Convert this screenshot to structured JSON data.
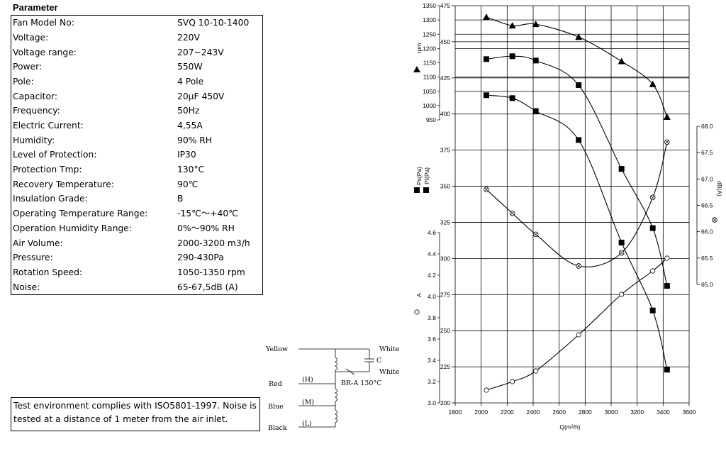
{
  "parameter": {
    "title": "Parameter",
    "rows": [
      {
        "label": "Fan Model No:",
        "value": "SVQ 10-10-1400"
      },
      {
        "label": "Voltage:",
        "value": "220V"
      },
      {
        "label": "Voltage range:",
        "value": "207~243V"
      },
      {
        "label": "Power:",
        "value": "550W"
      },
      {
        "label": "Pole:",
        "value": "4 Pole"
      },
      {
        "label": "Capacitor:",
        "value": "20μF 450V"
      },
      {
        "label": "Frequency:",
        "value": "50Hz"
      },
      {
        "label": "Electric Current:",
        "value": "4,55A"
      },
      {
        "label": "Humidity:",
        "value": "90% RH"
      },
      {
        "label": "Level of Protection:",
        "value": "IP30"
      },
      {
        "label": "Protection Tmp:",
        "value": "130°C"
      },
      {
        "label": "Recovery Temperature:",
        "value": "90℃"
      },
      {
        "label": "Insulation Grade:",
        "value": "B"
      },
      {
        "label": "Operating Temperature Range:",
        "value": "-15℃～+40℃"
      },
      {
        "label": "Operation Humidity Range:",
        "value": "0%～90% RH"
      },
      {
        "label": "Air Volume:",
        "value": "2000-3200 m3/h"
      },
      {
        "label": "Pressure:",
        "value": "290-430Pa"
      },
      {
        "label": "Rotation Speed:",
        "value": "1050-1350 rpm"
      },
      {
        "label": "Noise:",
        "value": "65-67,5dB (A)"
      }
    ]
  },
  "note": "Test environment complies with ISO5801-1997. Noise is tested at a distance of 1 meter from the air inlet.",
  "wiring": {
    "yellow": "Yellow",
    "white_top": "White",
    "white_bottom": "White",
    "capacitor": "C",
    "red": "Red",
    "h": "(H)",
    "breaker": "BR-A 130°C",
    "blue": "Blue",
    "m": "(M)",
    "black": "Black",
    "l": "(L)"
  },
  "chart_data": {
    "type": "line",
    "xlabel": "Q(m³/h)",
    "xlim": [
      1800,
      3600
    ],
    "x_ticks": [
      "1800",
      "2000",
      "2200",
      "2400",
      "2600",
      "2800",
      "3000",
      "3200",
      "3400",
      "3600"
    ],
    "axes": {
      "pressure": {
        "label_ps": "Ps(Pa)",
        "label_pt": "Pt(Pa)",
        "range": [
          200,
          475
        ],
        "ticks": [
          "475",
          "450",
          "425",
          "400",
          "375",
          "350",
          "325",
          "300",
          "275",
          "250",
          "225",
          "200"
        ]
      },
      "rpm": {
        "label": "rpm",
        "range": [
          950,
          1350
        ],
        "ticks": [
          "1350",
          "1300",
          "1250",
          "1200",
          "1150",
          "1100",
          "1050",
          "1000",
          "950"
        ]
      },
      "current": {
        "label": "A",
        "range": [
          3.0,
          4.6
        ],
        "ticks": [
          "4.6",
          "4.4",
          "4.2",
          "4.0",
          "3.8",
          "3.6",
          "3.4",
          "3.2",
          "3.0"
        ]
      },
      "noise": {
        "label": "dB(A)",
        "range": [
          65.0,
          68.0
        ],
        "ticks": [
          "68.0",
          "67.5",
          "67.0",
          "66.5",
          "66.0",
          "65.5",
          "65.0"
        ]
      }
    },
    "series": [
      {
        "key": "rpm",
        "axis": "rpm",
        "marker": "triangle",
        "x": [
          2040,
          2240,
          2420,
          2750,
          3080,
          3320,
          3430
        ],
        "y": [
          1310,
          1280,
          1285,
          1240,
          1155,
          1075,
          960
        ]
      },
      {
        "key": "pt",
        "axis": "pressure",
        "marker": "square",
        "x": [
          2040,
          2240,
          2420,
          2750,
          3080,
          3320,
          3430
        ],
        "y": [
          438,
          440,
          437,
          420,
          362,
          321,
          281
        ]
      },
      {
        "key": "ps",
        "axis": "pressure",
        "marker": "square",
        "x": [
          2040,
          2240,
          2420,
          2750,
          3080,
          3320,
          3430
        ],
        "y": [
          413,
          411,
          402,
          382,
          311,
          264,
          223
        ]
      },
      {
        "key": "noise",
        "axis": "noise",
        "marker": "circle-x",
        "x": [
          2040,
          2240,
          2420,
          2750,
          3080,
          3320,
          3430
        ],
        "y": [
          66.8,
          66.35,
          65.95,
          65.35,
          65.6,
          66.65,
          67.7
        ]
      },
      {
        "key": "current",
        "axis": "current",
        "marker": "circle",
        "x": [
          2040,
          2240,
          2420,
          2750,
          3080,
          3320,
          3430
        ],
        "y": [
          3.12,
          3.2,
          3.3,
          3.64,
          4.02,
          4.24,
          4.36
        ]
      }
    ]
  }
}
